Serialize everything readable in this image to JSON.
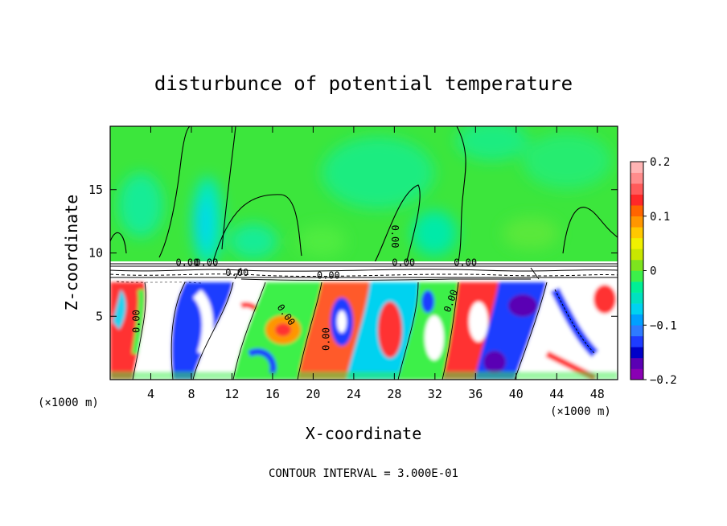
{
  "chart_data": {
    "type": "heatmap",
    "title": "disturbunce of potential temperature",
    "xlabel": "X-coordinate",
    "ylabel": "Z-coordinate",
    "x_unit": "(×1000 m)",
    "x_unit_right": "(×1000 m)",
    "footer": "CONTOUR INTERVAL = 3.000E-01",
    "xlim": [
      0,
      50
    ],
    "ylim": [
      0,
      20
    ],
    "x_ticks": [
      4,
      8,
      12,
      16,
      20,
      24,
      28,
      32,
      36,
      40,
      44,
      48
    ],
    "x_tick_labels": [
      "4",
      "8",
      "12",
      "16",
      "20",
      "24",
      "28",
      "32",
      "36",
      "40",
      "44",
      "48"
    ],
    "y_ticks": [
      5,
      10,
      15
    ],
    "y_tick_labels": [
      "5",
      "10",
      "15"
    ],
    "colorbar": {
      "range": [
        -0.2,
        0.2
      ],
      "tick_values": [
        0.2,
        0.1,
        0,
        -0.1,
        -0.2
      ],
      "tick_labels": [
        "0.2",
        "0.1",
        "0",
        "−0.1",
        "−0.2"
      ],
      "colors": [
        "#8a00b4",
        "#5a00b4",
        "#0000c8",
        "#1e3cff",
        "#2e7bff",
        "#00a0ff",
        "#00d2f0",
        "#00e1c0",
        "#00f096",
        "#3cf04a",
        "#7de41e",
        "#c8e600",
        "#f0f000",
        "#ffc800",
        "#ff9600",
        "#ff6400",
        "#ff2828",
        "#ff5a5a",
        "#ff8c8c",
        "#ffb4b4"
      ]
    },
    "contour_labels": [
      {
        "text": "0.00",
        "x": 28,
        "z": 11.3,
        "rotate": 90
      },
      {
        "text": "0.00",
        "x": 28.9,
        "z": 9.2,
        "rotate": 0
      },
      {
        "text": "0.00",
        "x": 7.6,
        "z": 9.2,
        "rotate": 0
      },
      {
        "text": "0.00",
        "x": 9.5,
        "z": 9.2,
        "rotate": 0
      },
      {
        "text": "0.00",
        "x": 12.5,
        "z": 8.4,
        "rotate": 0
      },
      {
        "text": "0.00",
        "x": 21.5,
        "z": 8.2,
        "rotate": 0
      },
      {
        "text": "0.00",
        "x": 35.0,
        "z": 9.2,
        "rotate": 0
      },
      {
        "text": "0.00",
        "x": 2.6,
        "z": 4.6,
        "rotate": -90
      },
      {
        "text": "0.00",
        "x": 17.3,
        "z": 5.1,
        "rotate": 55
      },
      {
        "text": "0.00",
        "x": 21.3,
        "z": 3.2,
        "rotate": -90
      },
      {
        "text": "0.00",
        "x": 33.6,
        "z": 6.2,
        "rotate": -70
      }
    ],
    "regions": {
      "upper_layer": "z > 9, near-zero values (green) with weak negative plumes (cyan)",
      "lower_layer": "z < 8, strong mixed positive/negative turbulent structure"
    }
  }
}
